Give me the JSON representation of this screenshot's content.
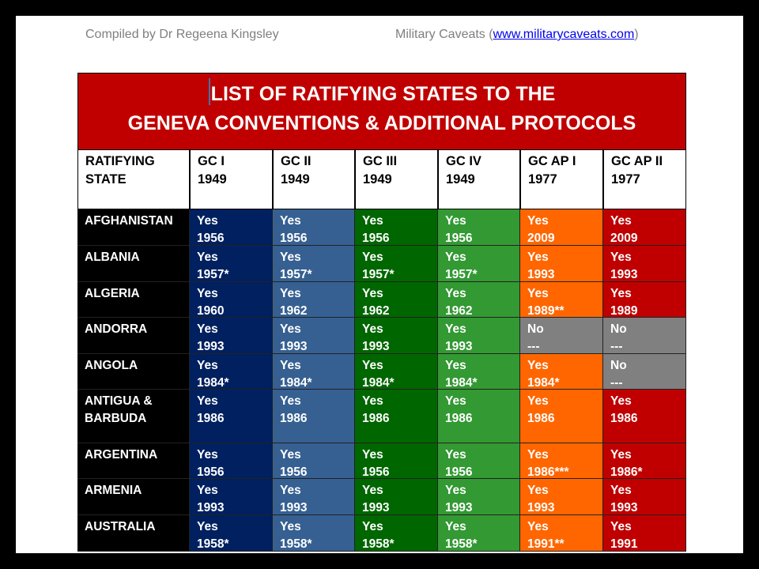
{
  "header": {
    "compiled_by": "Compiled by Dr Regeena Kingsley",
    "site_prefix": "Military Caveats (",
    "site_link": "www.militarycaveats.com",
    "site_suffix": ")"
  },
  "title": {
    "line1": "LIST OF RATIFYING STATES TO THE",
    "line2": "GENEVA CONVENTIONS & ADDITIONAL PROTOCOLS"
  },
  "columns": [
    {
      "l1": "RATIFYING",
      "l2": "STATE"
    },
    {
      "l1": "GC I",
      "l2": "1949",
      "color": "#002060"
    },
    {
      "l1": "GC II",
      "l2": "1949",
      "color": "#366092"
    },
    {
      "l1": "GC III",
      "l2": "1949",
      "color": "#006600"
    },
    {
      "l1": "GC IV",
      "l2": "1949",
      "color": "#339933"
    },
    {
      "l1": "GC AP I",
      "l2": "1977",
      "color": "#ff6600"
    },
    {
      "l1": "GC AP II",
      "l2": "1977",
      "color": "#c00000"
    }
  ],
  "no_color": "#808080",
  "rows": [
    {
      "state": [
        "AFGHANISTAN"
      ],
      "cells": [
        [
          "Yes",
          "1956"
        ],
        [
          "Yes",
          "1956"
        ],
        [
          "Yes",
          "1956"
        ],
        [
          "Yes",
          "1956"
        ],
        [
          "Yes",
          "2009"
        ],
        [
          "Yes",
          "2009"
        ]
      ]
    },
    {
      "state": [
        "ALBANIA"
      ],
      "cells": [
        [
          "Yes",
          "1957*"
        ],
        [
          "Yes",
          "1957*"
        ],
        [
          "Yes",
          "1957*"
        ],
        [
          "Yes",
          "1957*"
        ],
        [
          "Yes",
          "1993"
        ],
        [
          "Yes",
          "1993"
        ]
      ]
    },
    {
      "state": [
        "ALGERIA"
      ],
      "cells": [
        [
          "Yes",
          "1960"
        ],
        [
          "Yes",
          "1962"
        ],
        [
          "Yes",
          "1962"
        ],
        [
          "Yes",
          "1962"
        ],
        [
          "Yes",
          "1989**"
        ],
        [
          "Yes",
          "1989"
        ]
      ]
    },
    {
      "state": [
        "ANDORRA"
      ],
      "cells": [
        [
          "Yes",
          "1993"
        ],
        [
          "Yes",
          "1993"
        ],
        [
          "Yes",
          "1993"
        ],
        [
          "Yes",
          "1993"
        ],
        [
          "No",
          "---"
        ],
        [
          "No",
          "---"
        ]
      ]
    },
    {
      "state": [
        "ANGOLA"
      ],
      "cells": [
        [
          "Yes",
          "1984*"
        ],
        [
          "Yes",
          "1984*"
        ],
        [
          "Yes",
          "1984*"
        ],
        [
          "Yes",
          "1984*"
        ],
        [
          "Yes",
          "1984*"
        ],
        [
          "No",
          "---"
        ]
      ]
    },
    {
      "state": [
        "ANTIGUA &",
        "BARBUDA"
      ],
      "tall": true,
      "cells": [
        [
          "Yes",
          "1986"
        ],
        [
          "Yes",
          "1986"
        ],
        [
          "Yes",
          "1986"
        ],
        [
          "Yes",
          "1986"
        ],
        [
          "Yes",
          "1986"
        ],
        [
          "Yes",
          "1986"
        ]
      ]
    },
    {
      "state": [
        "ARGENTINA"
      ],
      "cells": [
        [
          "Yes",
          "1956"
        ],
        [
          "Yes",
          "1956"
        ],
        [
          "Yes",
          "1956"
        ],
        [
          "Yes",
          "1956"
        ],
        [
          "Yes",
          "1986***"
        ],
        [
          "Yes",
          "1986*"
        ]
      ]
    },
    {
      "state": [
        "ARMENIA"
      ],
      "cells": [
        [
          "Yes",
          "1993"
        ],
        [
          "Yes",
          "1993"
        ],
        [
          "Yes",
          "1993"
        ],
        [
          "Yes",
          "1993"
        ],
        [
          "Yes",
          "1993"
        ],
        [
          "Yes",
          "1993"
        ]
      ]
    },
    {
      "state": [
        "AUSTRALIA"
      ],
      "cells": [
        [
          "Yes",
          "1958*"
        ],
        [
          "Yes",
          "1958*"
        ],
        [
          "Yes",
          "1958*"
        ],
        [
          "Yes",
          "1958*"
        ],
        [
          "Yes",
          "1991**"
        ],
        [
          "Yes",
          "1991"
        ]
      ]
    }
  ]
}
